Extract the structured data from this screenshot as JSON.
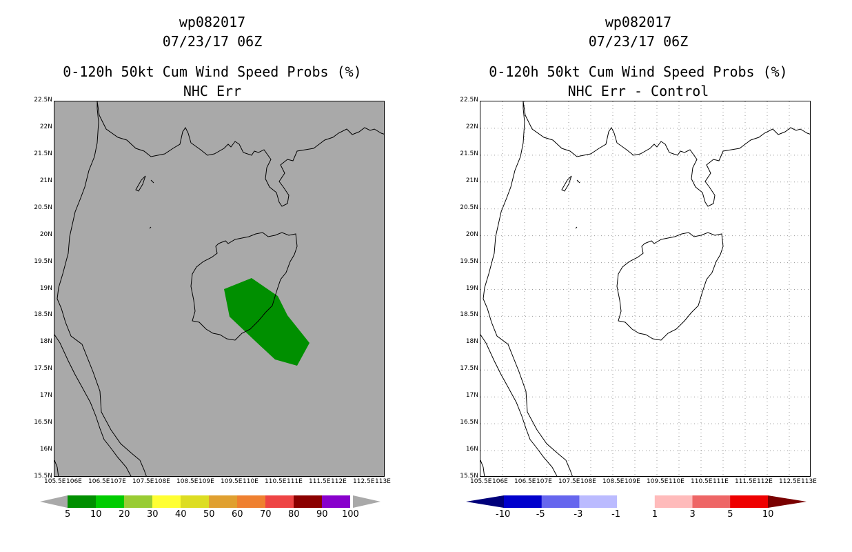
{
  "left": {
    "storm_id": "wp082017",
    "datetime": "07/23/17 06Z",
    "product": "0-120h 50kt Cum Wind Speed Probs (%)",
    "subtitle": "NHC Err",
    "background": "#a9a9a9",
    "colorbar": {
      "colors": [
        "#008f00",
        "#00cc00",
        "#99cc33",
        "#ffff33",
        "#dddd22",
        "#e0a030",
        "#ef8030",
        "#ee4444",
        "#8b0000",
        "#8800cc"
      ],
      "labels": [
        "5",
        "10",
        "20",
        "30",
        "40",
        "50",
        "60",
        "70",
        "80",
        "90",
        "100"
      ]
    },
    "prob_region": {
      "value": 5,
      "color": "#008f00"
    }
  },
  "right": {
    "storm_id": "wp082017",
    "datetime": "07/23/17 06Z",
    "product": "0-120h 50kt Cum Wind Speed Probs (%)",
    "subtitle": "NHC Err - Control",
    "background": "#ffffff",
    "colorbar": {
      "colors": [
        "#0000cc",
        "#6666ee",
        "#bbbbff",
        "#ffffff",
        "#ffbbbb",
        "#ee6666",
        "#ee0000"
      ],
      "low_color": "#00007a",
      "high_color": "#7a0000",
      "labels": [
        "-10",
        "-5",
        "-3",
        "-1",
        "1",
        "3",
        "5",
        "10"
      ]
    }
  },
  "axes": {
    "lat_labels": [
      "22.5N",
      "22N",
      "21.5N",
      "21N",
      "20.5N",
      "20N",
      "19.5N",
      "19N",
      "18.5N",
      "18N",
      "17.5N",
      "17N",
      "16.5N",
      "16N",
      "15.5N"
    ],
    "lon_labels": [
      "105.5E",
      "106E",
      "106.5E",
      "107E",
      "107.5E",
      "108E",
      "108.5E",
      "109E",
      "109.5E",
      "110E",
      "110.5E",
      "111E",
      "111.5E",
      "112E",
      "112.5E",
      "113E"
    ],
    "lat_range": [
      15.5,
      22.5
    ],
    "lon_range": [
      105.5,
      113.0
    ]
  }
}
